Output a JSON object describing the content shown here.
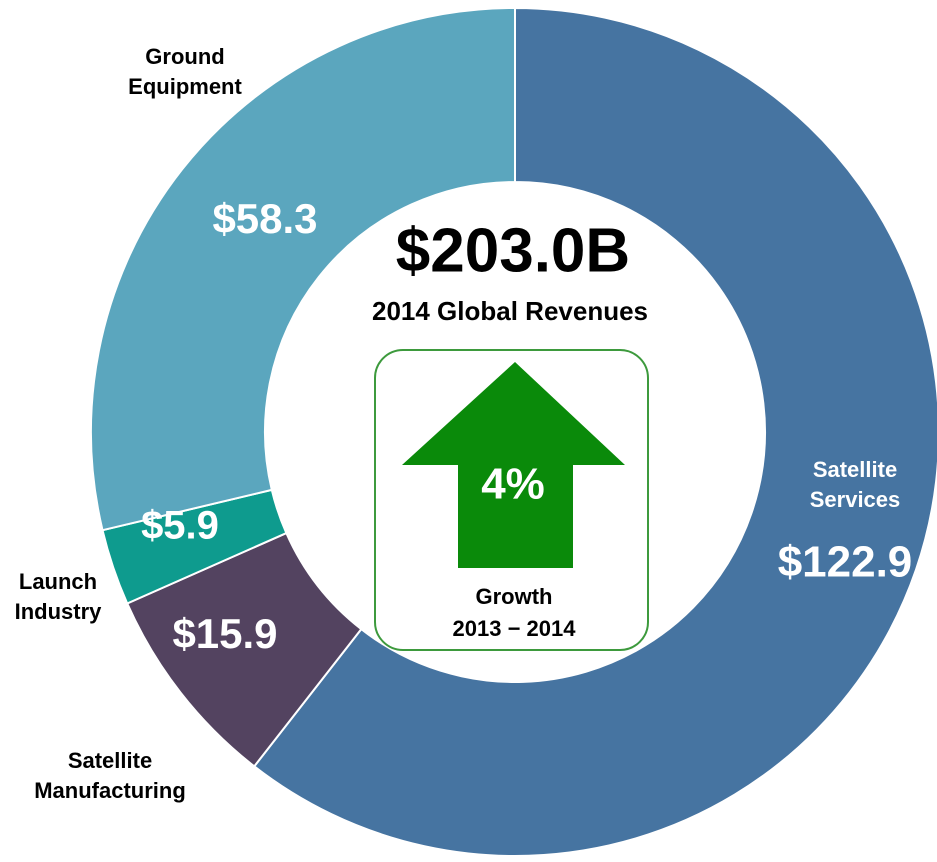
{
  "chart_data": {
    "type": "pie",
    "donut": true,
    "title": "$203.0B",
    "subtitle": "2014 Global Revenues",
    "categories": [
      "Satellite Services",
      "Satellite Manufacturing",
      "Launch Industry",
      "Ground Equipment"
    ],
    "values": [
      122.9,
      15.9,
      5.9,
      58.3
    ],
    "value_labels": [
      "$122.9",
      "$15.9",
      "$5.9",
      "$58.3"
    ],
    "colors": [
      "#4674a1",
      "#534360",
      "#0e9b8e",
      "#5ba6be"
    ],
    "annotations": {
      "growth": "4%",
      "growth_label": "Growth",
      "period": "2013 − 2014"
    }
  }
}
